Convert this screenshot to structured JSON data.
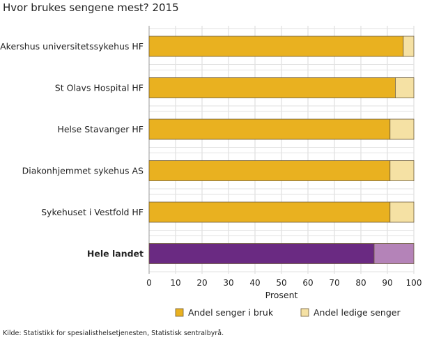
{
  "chart_data": {
    "type": "bar",
    "stacked": true,
    "orientation": "horizontal",
    "title": "Hvor brukes sengene mest? 2015",
    "xlabel": "Prosent",
    "xlim": [
      0,
      100
    ],
    "xticks": [
      "0",
      "10",
      "20",
      "30",
      "40",
      "50",
      "60",
      "70",
      "80",
      "90",
      "100"
    ],
    "grid": true,
    "legend_position": "bottom",
    "categories": [
      "Akershus universitetssykehus HF",
      "St Olavs Hospital HF",
      "Helse Stavanger HF",
      "Diakonhjemmet sykehus AS",
      "Sykehuset i Vestfold HF",
      "Hele landet"
    ],
    "highlight_category": "Hele landet",
    "series": [
      {
        "name": "Andel senger i bruk",
        "values": [
          96,
          93,
          91,
          91,
          91,
          85
        ],
        "color": "#e9b120",
        "highlight_color": "#6a2a82"
      },
      {
        "name": "Andel ledige senger",
        "values": [
          4,
          7,
          9,
          9,
          9,
          15
        ],
        "color": "#f5e1a4",
        "highlight_color": "#b483b8"
      }
    ]
  },
  "source": "Kilde: Statistikk for spesialisthelsetjenesten, Statistisk sentralbyrå."
}
